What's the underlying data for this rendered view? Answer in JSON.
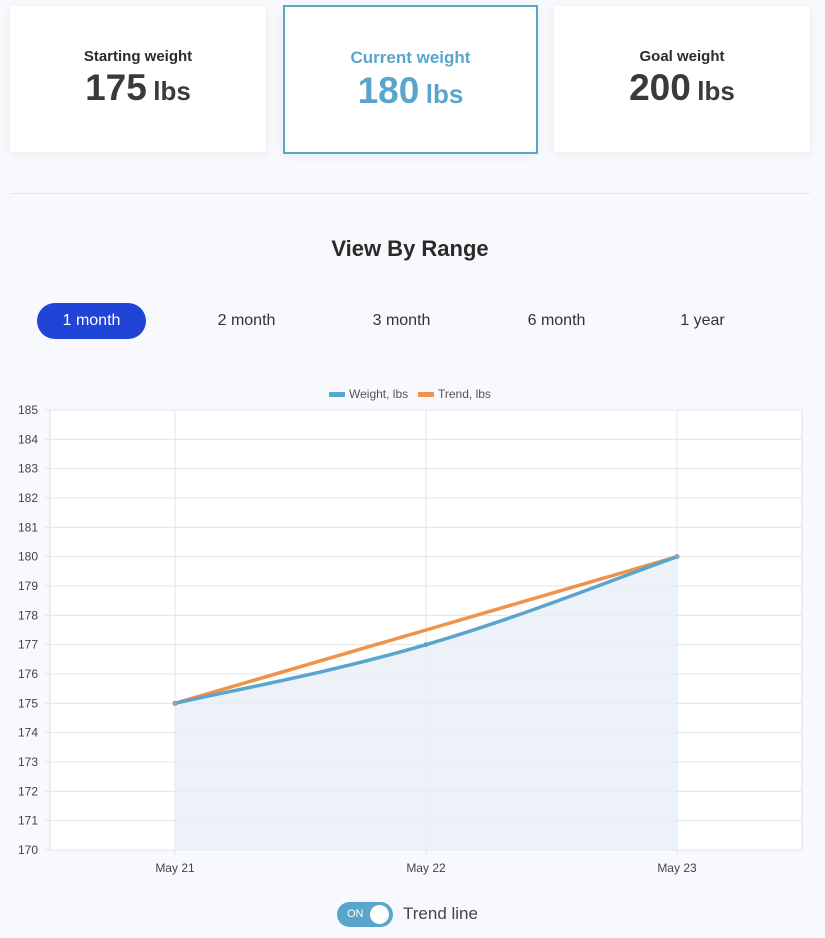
{
  "cards": [
    {
      "label": "Starting weight",
      "value": "175",
      "unit": "lbs"
    },
    {
      "label": "Current weight",
      "value": "180",
      "unit": "lbs"
    },
    {
      "label": "Goal weight",
      "value": "200",
      "unit": "lbs"
    }
  ],
  "range": {
    "title": "View By Range",
    "options": [
      "1 month",
      "2 month",
      "3 month",
      "6 month",
      "1 year"
    ],
    "active": "1 month"
  },
  "toggle": {
    "state_text": "ON",
    "label": "Trend line"
  },
  "colors": {
    "weight": "#5aa5cc",
    "trend": "#f0924a",
    "active": "#1f44d6",
    "fill": "#e6eef6"
  },
  "chart_data": {
    "type": "line",
    "title": "",
    "xlabel": "",
    "ylabel": "",
    "categories": [
      "May 21",
      "May 22",
      "May 23"
    ],
    "series": [
      {
        "name": "Weight, lbs",
        "values": [
          175,
          177,
          180
        ],
        "color": "#5aa5cc",
        "fill": true
      },
      {
        "name": "Trend, lbs",
        "values": [
          175,
          177.5,
          180
        ],
        "color": "#f0924a",
        "fill": false
      }
    ],
    "ylim": [
      170,
      185
    ],
    "yticks": [
      170,
      171,
      172,
      173,
      174,
      175,
      176,
      177,
      178,
      179,
      180,
      181,
      182,
      183,
      184,
      185
    ],
    "grid": true,
    "legend": "top-center"
  }
}
